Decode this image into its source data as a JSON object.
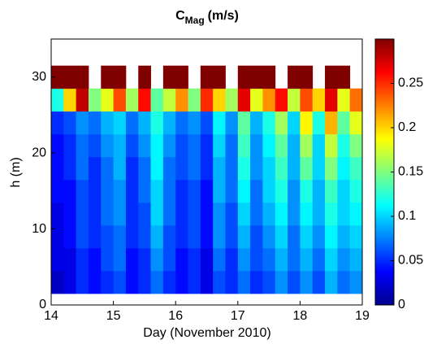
{
  "chart_data": {
    "type": "heatmap",
    "title": "C",
    "title_subscript": "Mag",
    "title_suffix": "(m/s)",
    "xlabel": "Day (November 2010)",
    "ylabel": "h (m)",
    "xlim": [
      14,
      19
    ],
    "xticks": [
      14,
      15,
      16,
      17,
      18,
      19
    ],
    "ylim": [
      0,
      35
    ],
    "yticks": [
      0,
      10,
      20,
      30
    ],
    "clim": [
      0,
      0.3
    ],
    "cticks": [
      0,
      0.05,
      0.1,
      0.15,
      0.2,
      0.25
    ],
    "colormap": "jet",
    "xbins": [
      14.0,
      14.2,
      14.4,
      14.6,
      14.8,
      15.0,
      15.2,
      15.4,
      15.6,
      15.8,
      16.0,
      16.2,
      16.4,
      16.6,
      16.8,
      17.0,
      17.2,
      17.4,
      17.6,
      17.8,
      18.0,
      18.2,
      18.4,
      18.6,
      18.8,
      19.0
    ],
    "ybins": [
      1.5,
      4.5,
      7.5,
      10.5,
      13.5,
      16.5,
      19.5,
      22.5,
      25.5,
      28.5,
      31.5
    ],
    "z": [
      [
        0.02,
        0.03,
        0.05,
        0.04,
        0.05,
        0.06,
        0.04,
        0.05,
        0.07,
        0.05,
        0.04,
        0.05,
        0.03,
        0.06,
        0.05,
        0.07,
        0.05,
        0.06,
        0.08,
        0.06,
        0.08,
        0.06,
        0.09,
        0.07,
        0.08
      ],
      [
        0.03,
        0.03,
        0.05,
        0.04,
        0.06,
        0.07,
        0.04,
        0.05,
        0.08,
        0.06,
        0.04,
        0.05,
        0.03,
        0.07,
        0.05,
        0.08,
        0.06,
        0.07,
        0.09,
        0.07,
        0.09,
        0.07,
        0.1,
        0.08,
        0.09
      ],
      [
        0.03,
        0.04,
        0.06,
        0.05,
        0.06,
        0.07,
        0.05,
        0.06,
        0.09,
        0.06,
        0.05,
        0.06,
        0.04,
        0.08,
        0.06,
        0.09,
        0.06,
        0.08,
        0.1,
        0.07,
        0.1,
        0.08,
        0.11,
        0.09,
        0.1
      ],
      [
        0.03,
        0.04,
        0.06,
        0.05,
        0.07,
        0.08,
        0.05,
        0.06,
        0.1,
        0.07,
        0.05,
        0.06,
        0.04,
        0.08,
        0.06,
        0.1,
        0.07,
        0.09,
        0.11,
        0.08,
        0.11,
        0.09,
        0.12,
        0.1,
        0.11
      ],
      [
        0.04,
        0.04,
        0.06,
        0.05,
        0.07,
        0.08,
        0.05,
        0.07,
        0.1,
        0.07,
        0.05,
        0.06,
        0.04,
        0.09,
        0.07,
        0.11,
        0.07,
        0.1,
        0.12,
        0.08,
        0.12,
        0.09,
        0.13,
        0.1,
        0.12
      ],
      [
        0.04,
        0.05,
        0.07,
        0.05,
        0.07,
        0.09,
        0.05,
        0.07,
        0.11,
        0.07,
        0.06,
        0.07,
        0.05,
        0.09,
        0.07,
        0.12,
        0.08,
        0.1,
        0.13,
        0.09,
        0.14,
        0.1,
        0.15,
        0.11,
        0.13
      ],
      [
        0.04,
        0.05,
        0.07,
        0.06,
        0.08,
        0.09,
        0.06,
        0.08,
        0.11,
        0.08,
        0.06,
        0.07,
        0.05,
        0.1,
        0.07,
        0.13,
        0.08,
        0.11,
        0.14,
        0.09,
        0.16,
        0.1,
        0.17,
        0.12,
        0.15
      ],
      [
        0.05,
        0.06,
        0.08,
        0.07,
        0.09,
        0.1,
        0.07,
        0.09,
        0.12,
        0.09,
        0.07,
        0.08,
        0.06,
        0.11,
        0.08,
        0.14,
        0.09,
        0.12,
        0.16,
        0.1,
        0.19,
        0.12,
        0.21,
        0.14,
        0.18
      ],
      [
        0.12,
        0.2,
        0.28,
        0.15,
        0.18,
        0.24,
        0.16,
        0.26,
        0.14,
        0.17,
        0.22,
        0.15,
        0.25,
        0.2,
        0.16,
        0.27,
        0.18,
        0.22,
        0.26,
        0.17,
        0.24,
        0.2,
        0.27,
        0.18,
        0.23
      ],
      [
        0.3,
        0.3,
        0.3,
        null,
        0.3,
        0.3,
        null,
        0.3,
        null,
        0.3,
        0.3,
        null,
        0.3,
        0.3,
        null,
        0.3,
        0.3,
        0.3,
        null,
        0.3,
        0.3,
        null,
        0.3,
        0.3,
        null
      ]
    ]
  }
}
